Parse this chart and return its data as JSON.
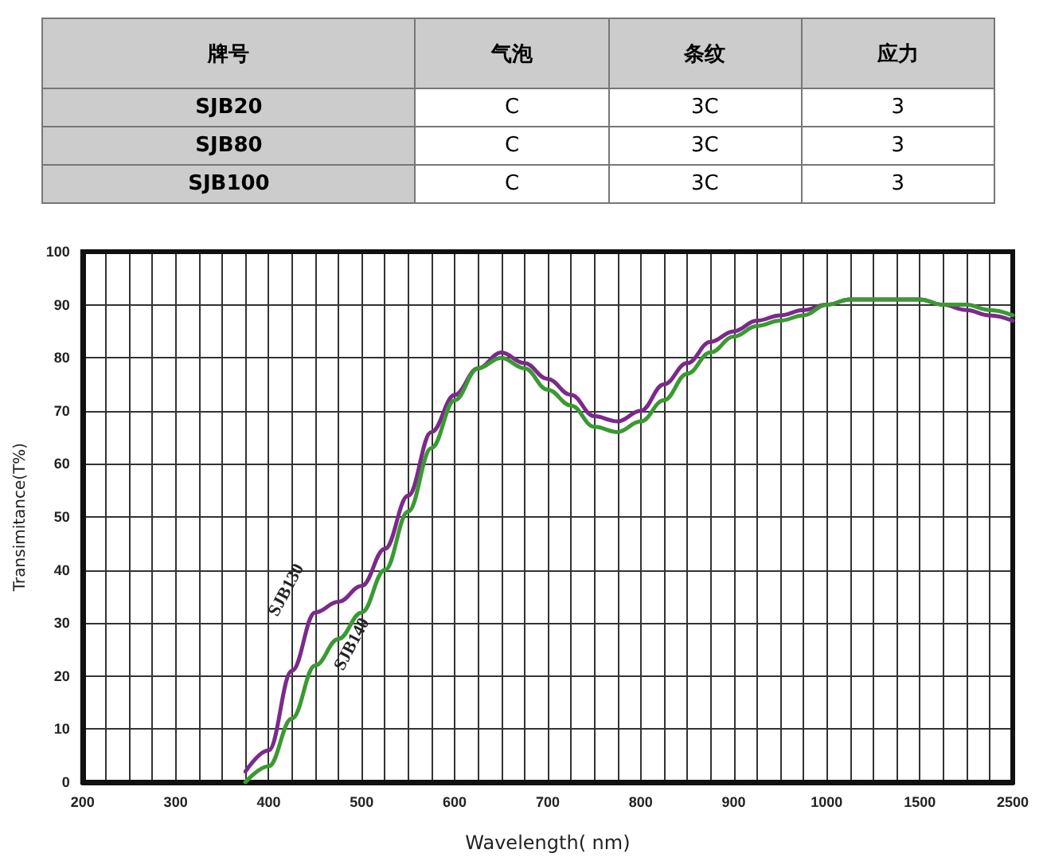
{
  "chart_data": [
    {
      "type": "other",
      "categories": [
        "牌号",
        "气泡",
        "条纹",
        "应力"
      ],
      "cell_labels": [
        [
          "SJB20",
          "C",
          "3C",
          "3"
        ],
        [
          "SJB80",
          "C",
          "3C",
          "3"
        ],
        [
          "SJB100",
          "C",
          "3C",
          "3"
        ]
      ]
    },
    {
      "type": "line",
      "xlabel": "Wavelength( nm)",
      "ylabel": "Transimitance(T%)",
      "categories": [
        "200",
        null,
        null,
        null,
        "300",
        null,
        null,
        null,
        "400",
        null,
        null,
        null,
        "500",
        null,
        null,
        null,
        "600",
        null,
        null,
        null,
        "700",
        null,
        null,
        null,
        "800",
        null,
        null,
        null,
        "900",
        null,
        null,
        null,
        "1000",
        null,
        null,
        null,
        "1500",
        null,
        null,
        null,
        "2500"
      ],
      "series": [
        {
          "name": "SJB130",
          "color": "#7b2a8a",
          "values": [
            null,
            null,
            null,
            null,
            null,
            null,
            null,
            2,
            6,
            21,
            32,
            34,
            37,
            44,
            54,
            66,
            73,
            78,
            81,
            79,
            76,
            73,
            69,
            68,
            70,
            75,
            79,
            83,
            85,
            87,
            88,
            89,
            90,
            91,
            91,
            91,
            91,
            90,
            89,
            88,
            87
          ]
        },
        {
          "name": "SJB140",
          "color": "#3a9a32",
          "values": [
            null,
            null,
            null,
            null,
            null,
            null,
            null,
            0,
            3,
            12,
            22,
            27,
            32,
            40,
            51,
            63,
            72,
            78,
            80,
            78,
            74,
            71,
            67,
            66,
            68,
            72,
            77,
            81,
            84,
            86,
            87,
            88,
            90,
            91,
            91,
            91,
            91,
            90,
            90,
            89,
            88
          ]
        }
      ],
      "ylim": [
        0,
        100
      ],
      "yticks": [
        0,
        10,
        20,
        30,
        40,
        50,
        60,
        70,
        80,
        90,
        100
      ],
      "grid": true,
      "legend": false,
      "marker": "none",
      "line_style": "solid"
    }
  ]
}
